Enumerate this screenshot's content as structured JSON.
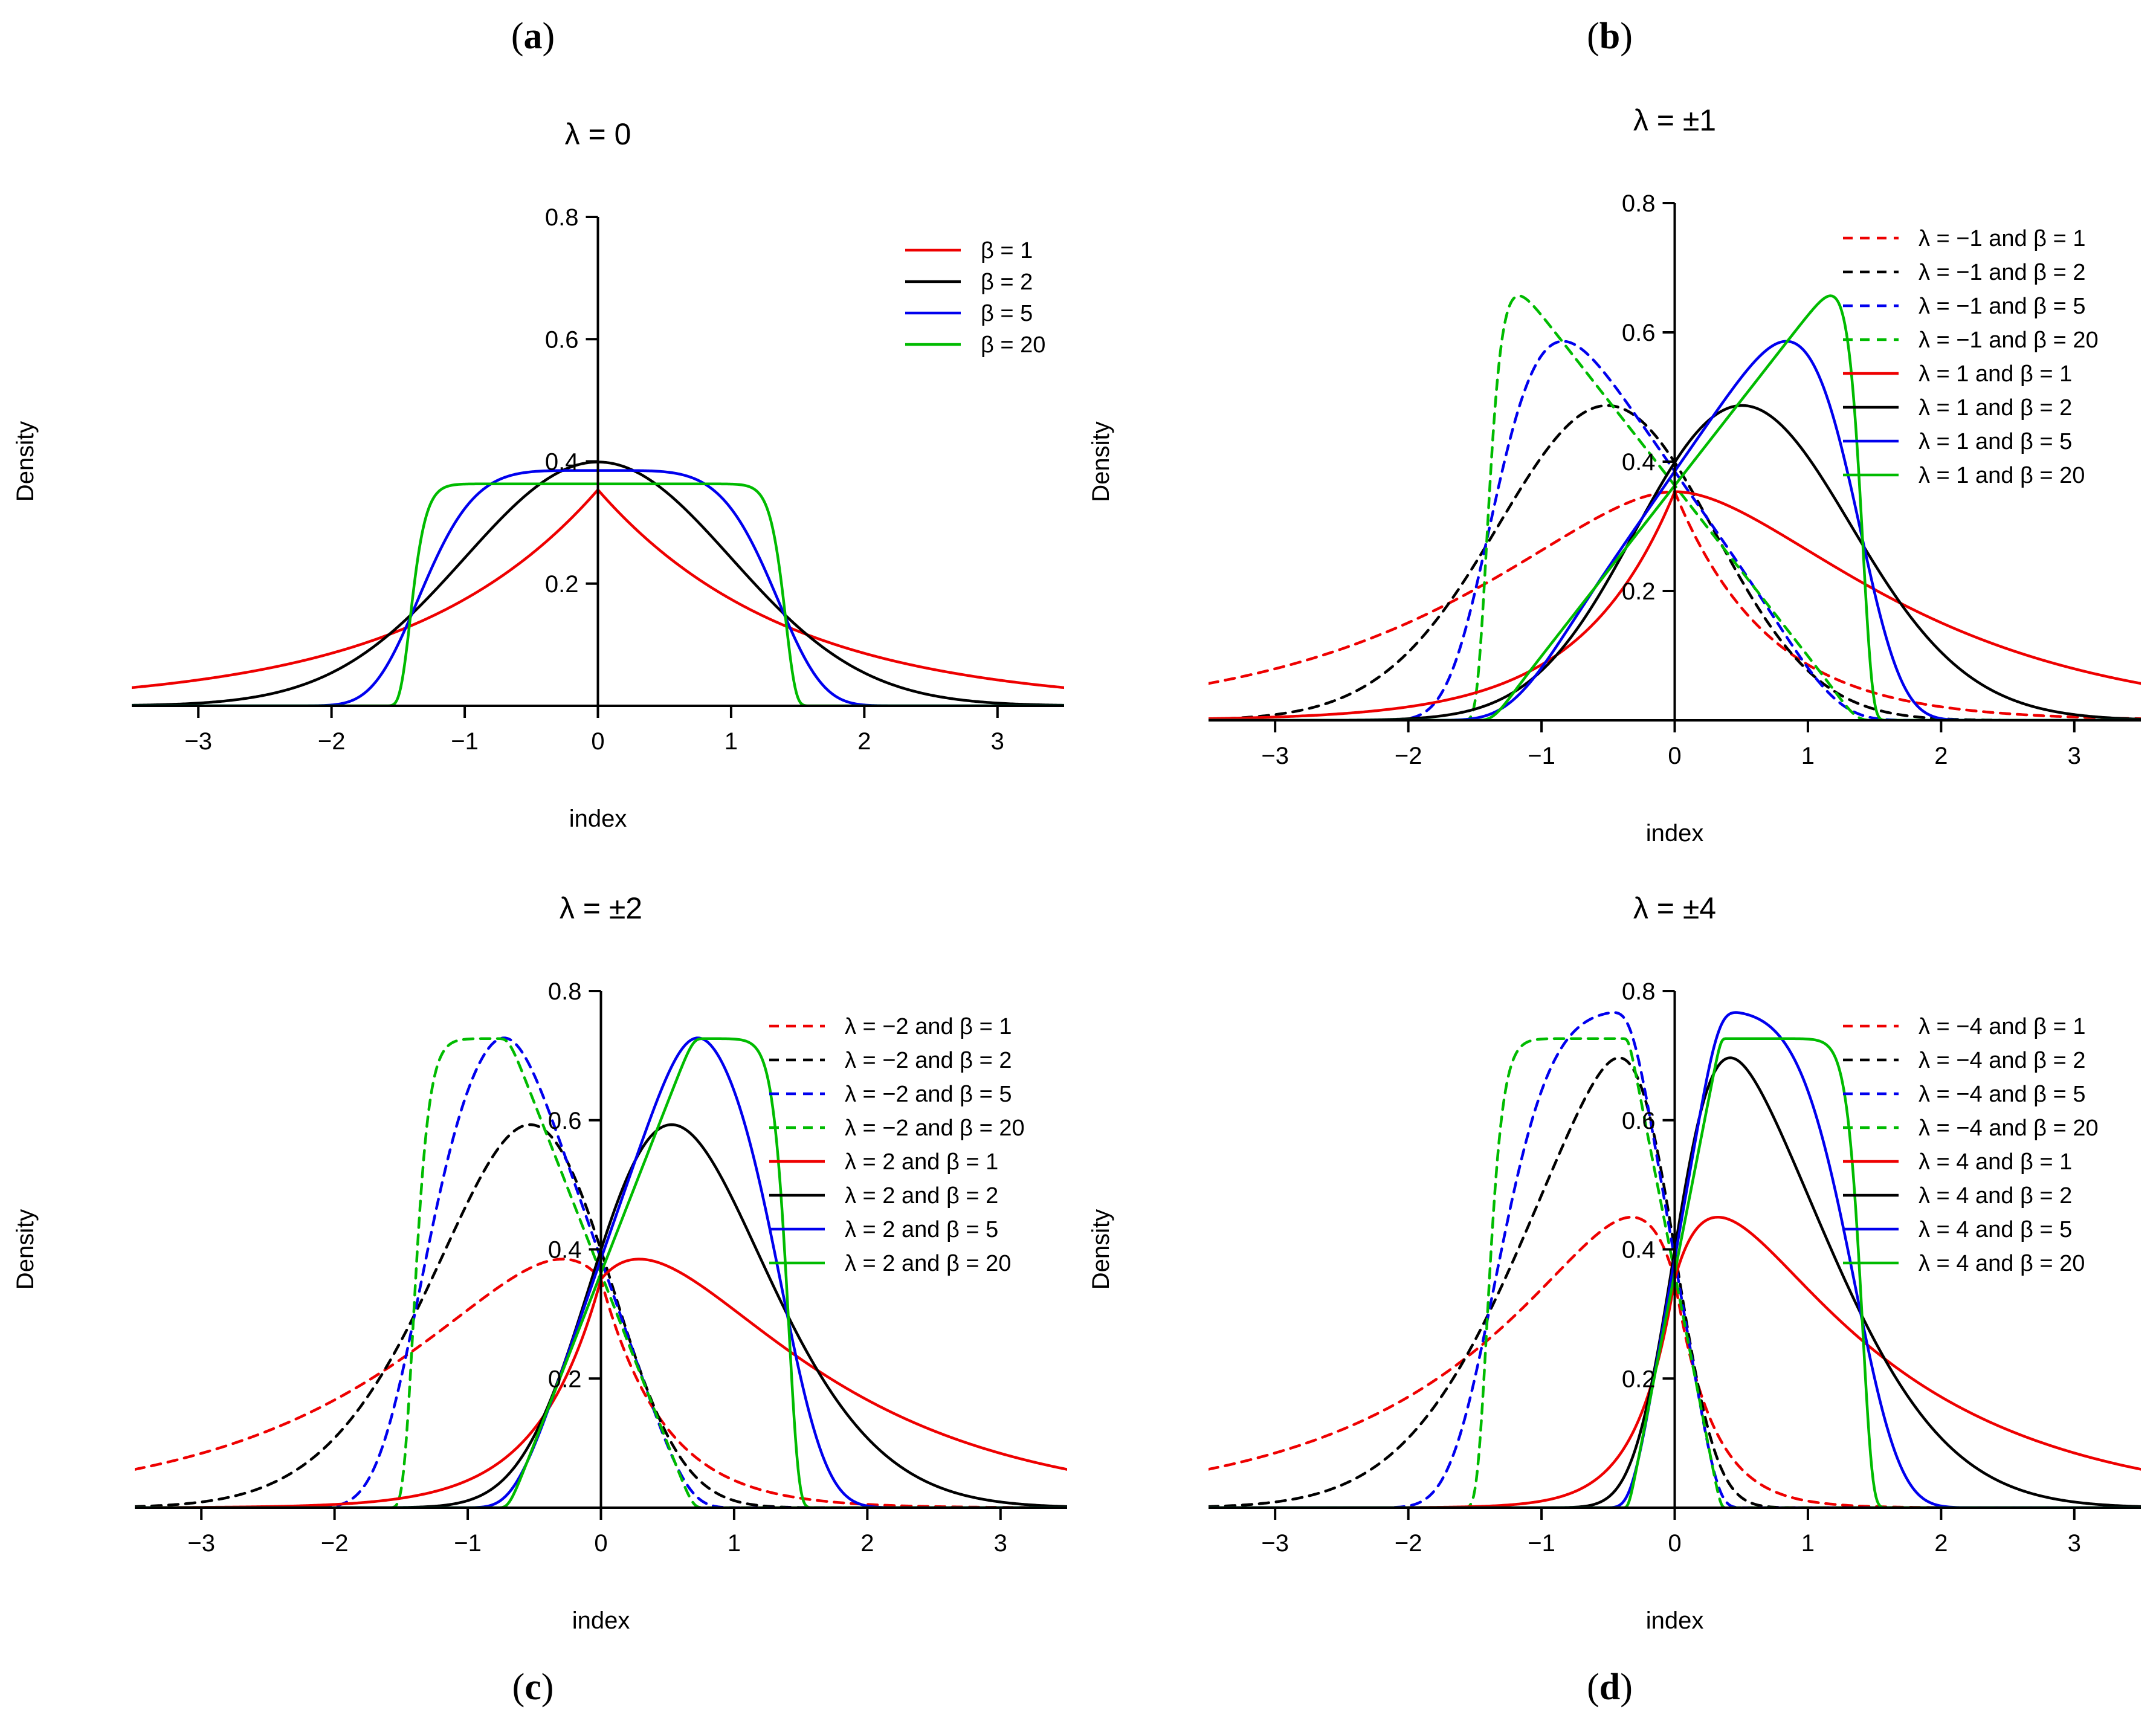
{
  "figure_labels": [
    "a",
    "b",
    "c",
    "d"
  ],
  "chart_data": [
    {
      "type": "line",
      "label": "a",
      "title": "λ = 0",
      "xlabel": "index",
      "ylabel": "Density",
      "xlim": [
        -3.5,
        3.5
      ],
      "ylim": [
        0,
        0.8
      ],
      "xticks": [
        -3,
        -2,
        -1,
        0,
        1,
        2,
        3
      ],
      "yticks": [
        0.2,
        0.4,
        0.6,
        0.8
      ],
      "legend_position": "top-right",
      "series": [
        {
          "name": "β = 1",
          "lambda": 0,
          "beta": 1,
          "color": "#ee0000",
          "dash": "solid"
        },
        {
          "name": "β = 2",
          "lambda": 0,
          "beta": 2,
          "color": "#000000",
          "dash": "solid"
        },
        {
          "name": "β = 5",
          "lambda": 0,
          "beta": 5,
          "color": "#0000ee",
          "dash": "solid"
        },
        {
          "name": "β = 20",
          "lambda": 0,
          "beta": 20,
          "color": "#00bb00",
          "dash": "solid"
        }
      ]
    },
    {
      "type": "line",
      "label": "b",
      "title": "λ = ±1",
      "xlabel": "index",
      "ylabel": "Density",
      "xlim": [
        -3.5,
        3.5
      ],
      "ylim": [
        0,
        0.8
      ],
      "xticks": [
        -3,
        -2,
        -1,
        0,
        1,
        2,
        3
      ],
      "yticks": [
        0.2,
        0.4,
        0.6,
        0.8
      ],
      "legend_position": "top-right",
      "series": [
        {
          "name": "λ = −1 and β = 1",
          "lambda": -1,
          "beta": 1,
          "color": "#ee0000",
          "dash": "dashed"
        },
        {
          "name": "λ = −1 and β = 2",
          "lambda": -1,
          "beta": 2,
          "color": "#000000",
          "dash": "dashed"
        },
        {
          "name": "λ = −1 and β = 5",
          "lambda": -1,
          "beta": 5,
          "color": "#0000ee",
          "dash": "dashed"
        },
        {
          "name": "λ = −1 and β = 20",
          "lambda": -1,
          "beta": 20,
          "color": "#00bb00",
          "dash": "dashed"
        },
        {
          "name": "λ = 1 and β = 1",
          "lambda": 1,
          "beta": 1,
          "color": "#ee0000",
          "dash": "solid"
        },
        {
          "name": "λ = 1 and β = 2",
          "lambda": 1,
          "beta": 2,
          "color": "#000000",
          "dash": "solid"
        },
        {
          "name": "λ = 1 and β = 5",
          "lambda": 1,
          "beta": 5,
          "color": "#0000ee",
          "dash": "solid"
        },
        {
          "name": "λ = 1 and β = 20",
          "lambda": 1,
          "beta": 20,
          "color": "#00bb00",
          "dash": "solid"
        }
      ]
    },
    {
      "type": "line",
      "label": "c",
      "title": "λ = ±2",
      "xlabel": "index",
      "ylabel": "Density",
      "xlim": [
        -3.5,
        3.5
      ],
      "ylim": [
        0,
        0.8
      ],
      "xticks": [
        -3,
        -2,
        -1,
        0,
        1,
        2,
        3
      ],
      "yticks": [
        0.2,
        0.4,
        0.6,
        0.8
      ],
      "legend_position": "top-right",
      "series": [
        {
          "name": "λ = −2 and β = 1",
          "lambda": -2,
          "beta": 1,
          "color": "#ee0000",
          "dash": "dashed"
        },
        {
          "name": "λ = −2 and β = 2",
          "lambda": -2,
          "beta": 2,
          "color": "#000000",
          "dash": "dashed"
        },
        {
          "name": "λ = −2 and β = 5",
          "lambda": -2,
          "beta": 5,
          "color": "#0000ee",
          "dash": "dashed"
        },
        {
          "name": "λ = −2 and β = 20",
          "lambda": -2,
          "beta": 20,
          "color": "#00bb00",
          "dash": "dashed"
        },
        {
          "name": "λ = 2 and β = 1",
          "lambda": 2,
          "beta": 1,
          "color": "#ee0000",
          "dash": "solid"
        },
        {
          "name": "λ = 2 and β = 2",
          "lambda": 2,
          "beta": 2,
          "color": "#000000",
          "dash": "solid"
        },
        {
          "name": "λ = 2 and β = 5",
          "lambda": 2,
          "beta": 5,
          "color": "#0000ee",
          "dash": "solid"
        },
        {
          "name": "λ = 2 and β = 20",
          "lambda": 2,
          "beta": 20,
          "color": "#00bb00",
          "dash": "solid"
        }
      ]
    },
    {
      "type": "line",
      "label": "d",
      "title": "λ = ±4",
      "xlabel": "index",
      "ylabel": "Density",
      "xlim": [
        -3.5,
        3.5
      ],
      "ylim": [
        0,
        0.8
      ],
      "xticks": [
        -3,
        -2,
        -1,
        0,
        1,
        2,
        3
      ],
      "yticks": [
        0.2,
        0.4,
        0.6,
        0.8
      ],
      "legend_position": "top-right",
      "series": [
        {
          "name": "λ = −4 and β = 1",
          "lambda": -4,
          "beta": 1,
          "color": "#ee0000",
          "dash": "dashed"
        },
        {
          "name": "λ = −4 and β = 2",
          "lambda": -4,
          "beta": 2,
          "color": "#000000",
          "dash": "dashed"
        },
        {
          "name": "λ = −4 and β = 5",
          "lambda": -4,
          "beta": 5,
          "color": "#0000ee",
          "dash": "dashed"
        },
        {
          "name": "λ = −4 and β = 20",
          "lambda": -4,
          "beta": 20,
          "color": "#00bb00",
          "dash": "dashed"
        },
        {
          "name": "λ = 4 and β = 1",
          "lambda": 4,
          "beta": 1,
          "color": "#ee0000",
          "dash": "solid"
        },
        {
          "name": "λ = 4 and β = 2",
          "lambda": 4,
          "beta": 2,
          "color": "#000000",
          "dash": "solid"
        },
        {
          "name": "λ = 4 and β = 5",
          "lambda": 4,
          "beta": 5,
          "color": "#0000ee",
          "dash": "solid"
        },
        {
          "name": "λ = 4 and β = 20",
          "lambda": 4,
          "beta": 20,
          "color": "#00bb00",
          "dash": "solid"
        }
      ]
    }
  ]
}
